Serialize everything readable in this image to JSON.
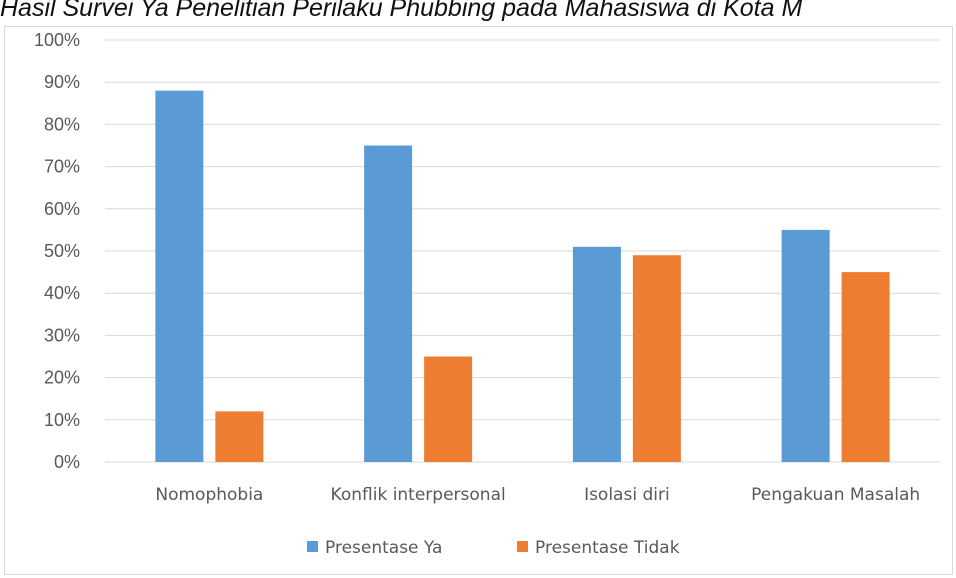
{
  "page_title": "Hasil Survei Ya Penelitian Perilaku Phubbing pada Mahasiswa di Kota M",
  "colors": {
    "ya": "#5b9bd5",
    "tidak": "#ed7d31",
    "grid": "#d9d9d9",
    "text": "#595959"
  },
  "chart_data": {
    "type": "bar",
    "title": "",
    "xlabel": "",
    "ylabel": "",
    "categories": [
      "Nomophobia",
      "Konflik interpersonal",
      "Isolasi diri",
      "Pengakuan Masalah"
    ],
    "series": [
      {
        "name": "Presentase Ya",
        "values": [
          88,
          75,
          51,
          55
        ]
      },
      {
        "name": "Presentase Tidak",
        "values": [
          12,
          25,
          49,
          45
        ]
      }
    ],
    "ylim": [
      0,
      100
    ],
    "yticks": [
      "0%",
      "10%",
      "20%",
      "30%",
      "40%",
      "50%",
      "60%",
      "70%",
      "80%",
      "90%",
      "100%"
    ],
    "grid": true,
    "legend": "bottom"
  }
}
